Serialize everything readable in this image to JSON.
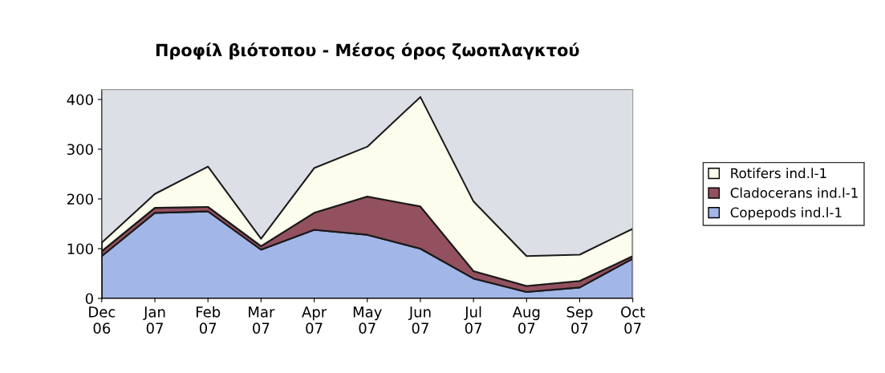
{
  "chart_data": {
    "type": "area",
    "title": "Προφίλ βιότοπου - Μέσος όρος ζωοπλαγκτού",
    "categories": [
      "Dec\n06",
      "Jan\n07",
      "Feb\n07",
      "Mar\n07",
      "Apr\n07",
      "May\n07",
      "Jun\n07",
      "Jul\n07",
      "Aug\n07",
      "Sep\n07",
      "Oct\n07"
    ],
    "stacked": true,
    "series": [
      {
        "name": "Copepods ind.l-1",
        "color": "#a3b6e8",
        "values": [
          85,
          172,
          175,
          98,
          138,
          128,
          100,
          40,
          13,
          22,
          80
        ]
      },
      {
        "name": "Cladocerans ind.l-1",
        "color": "#93505f",
        "values": [
          10,
          10,
          9,
          7,
          34,
          77,
          85,
          15,
          12,
          13,
          5
        ]
      },
      {
        "name": "Rotifers ind.l-1",
        "color": "#fdfdee",
        "values": [
          17,
          28,
          81,
          15,
          90,
          100,
          220,
          140,
          60,
          53,
          55
        ]
      }
    ],
    "ylim": [
      0,
      420
    ],
    "yticks": [
      0,
      100,
      200,
      300,
      400
    ],
    "grid": false,
    "legend": "right"
  }
}
